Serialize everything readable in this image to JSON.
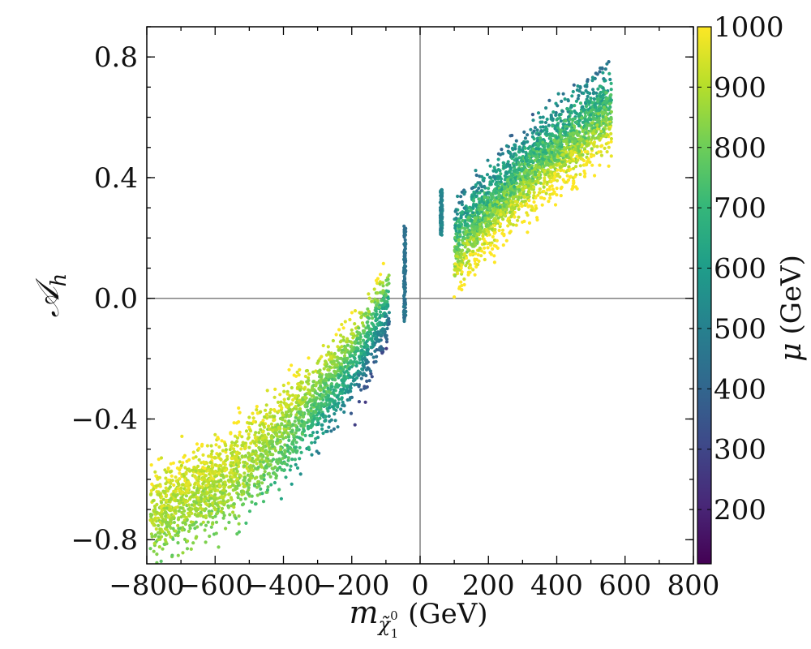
{
  "chart_data": {
    "type": "scatter",
    "title": "",
    "xlabel": {
      "symbol": "m",
      "subscript_base": "χ̃",
      "subscript_sub": "1",
      "subscript_sup": "0",
      "unit": "(GeV)"
    },
    "ylabel": {
      "symbol": "𝒜",
      "subscript": "h"
    },
    "xlim": [
      -800,
      800
    ],
    "ylim": [
      -0.88,
      0.9
    ],
    "xticks": [
      -800,
      -600,
      -400,
      -200,
      0,
      200,
      400,
      600,
      800
    ],
    "xtick_labels": [
      "−800",
      "−600",
      "−400",
      "−200",
      "0",
      "200",
      "400",
      "600",
      "800"
    ],
    "yticks": [
      -0.8,
      -0.4,
      0.0,
      0.4,
      0.8
    ],
    "ytick_labels": [
      "−0.8",
      "−0.4",
      "0.0",
      "0.4",
      "0.8"
    ],
    "reference_lines": {
      "x": 0,
      "y": 0
    },
    "grid": false,
    "colorbar": {
      "label_symbol": "μ",
      "label_unit": "(GeV)",
      "range": [
        110,
        1000
      ],
      "ticks": [
        200,
        300,
        400,
        500,
        600,
        700,
        800,
        900,
        1000
      ],
      "tick_labels": [
        "200",
        "300",
        "400",
        "500",
        "600",
        "700",
        "800",
        "900",
        "1000"
      ],
      "colormap": "viridis",
      "colormap_stops": [
        "#440154",
        "#482878",
        "#3e4989",
        "#31688e",
        "#26828e",
        "#1f9e89",
        "#35b779",
        "#6ece58",
        "#b5de2b",
        "#fde725"
      ]
    },
    "clusters": [
      {
        "name": "negative-mass band",
        "x_range": [
          -790,
          -90
        ],
        "y_at_x": [
          [
            -790,
            -0.72
          ],
          [
            -600,
            -0.62
          ],
          [
            -400,
            -0.45
          ],
          [
            -200,
            -0.22
          ],
          [
            -90,
            -0.02
          ]
        ],
        "y_spread": 0.17,
        "color_trend": "high mu (yellow) toward upper-left, low mu (blue) toward lower-right edge"
      },
      {
        "name": "narrow column near -45",
        "x_center": -45,
        "y_range": [
          -0.08,
          0.24
        ],
        "mu": 450
      },
      {
        "name": "narrow column near 62",
        "x_center": 62,
        "y_range": [
          0.21,
          0.36
        ],
        "mu": 520
      },
      {
        "name": "positive-mass band",
        "x_range": [
          100,
          560
        ],
        "y_at_x": [
          [
            100,
            0.17
          ],
          [
            200,
            0.29
          ],
          [
            300,
            0.4
          ],
          [
            400,
            0.5
          ],
          [
            500,
            0.58
          ],
          [
            560,
            0.63
          ]
        ],
        "y_spread": 0.16,
        "color_trend": "high mu (yellow) along lower edge, lower mu (teal/green) along upper edge"
      }
    ]
  }
}
